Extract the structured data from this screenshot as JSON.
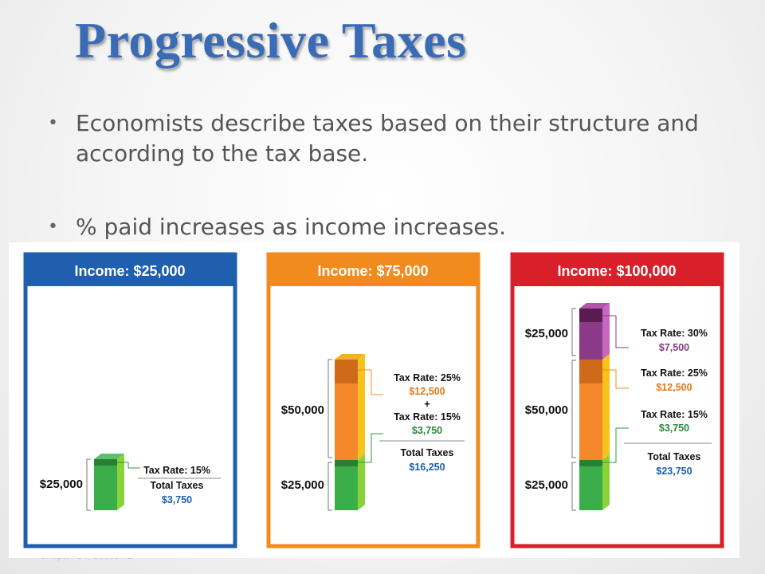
{
  "slide": {
    "title": "Progressive Taxes",
    "bullets": [
      "Economists describe taxes based on their structure and according to the tax base.",
      "% paid increases as income increases."
    ],
    "footer": "Chapter 14, Section 1"
  },
  "colors": {
    "panel1": "#1f5fae",
    "panel2": "#f28b1e",
    "panel3": "#d81f2a",
    "untaxed_green": "#3cae49",
    "tax15_green": "#2a7f35",
    "band_25000_50000_orange": "#f4882a",
    "tax25_orange": "#cf6a1b",
    "band_over_50000_purple": "#8a3a86",
    "tax30_purple": "#5a1a52",
    "dollar_blue": "#1d5fae"
  },
  "chart_data": {
    "type": "stacked-bar",
    "panels": [
      {
        "income_label": "Income: $25,000",
        "income": 25000,
        "segments": [
          {
            "range": "$25,000",
            "amount": 25000,
            "rate": "15%"
          }
        ],
        "annotations": [
          {
            "rate_label": "Tax Rate: 15%",
            "amount_label": null
          }
        ],
        "total_label": "Total Taxes",
        "total_value": "$3,750",
        "total": 3750
      },
      {
        "income_label": "Income: $75,000",
        "income": 75000,
        "segments": [
          {
            "range": "$25,000",
            "amount": 25000,
            "rate": "15%"
          },
          {
            "range": "$50,000",
            "amount": 50000,
            "rate": "25%"
          }
        ],
        "annotations": [
          {
            "rate_label": "Tax Rate: 25%",
            "amount_label": "$12,500"
          },
          {
            "rate_label": "Tax Rate: 15%",
            "amount_label": "$3,750"
          }
        ],
        "plus": "+",
        "total_label": "Total Taxes",
        "total_value": "$16,250",
        "total": 16250
      },
      {
        "income_label": "Income: $100,000",
        "income": 100000,
        "segments": [
          {
            "range": "$25,000",
            "amount": 25000,
            "rate": "15%"
          },
          {
            "range": "$50,000",
            "amount": 50000,
            "rate": "25%"
          },
          {
            "range": "$25,000",
            "amount": 25000,
            "rate": "30%"
          }
        ],
        "annotations": [
          {
            "rate_label": "Tax Rate: 30%",
            "amount_label": "$7,500"
          },
          {
            "rate_label": "Tax Rate: 25%",
            "amount_label": "$12,500"
          },
          {
            "rate_label": "Tax Rate: 15%",
            "amount_label": "$3,750"
          }
        ],
        "total_label": "Total Taxes",
        "total_value": "$23,750",
        "total": 23750
      }
    ]
  }
}
